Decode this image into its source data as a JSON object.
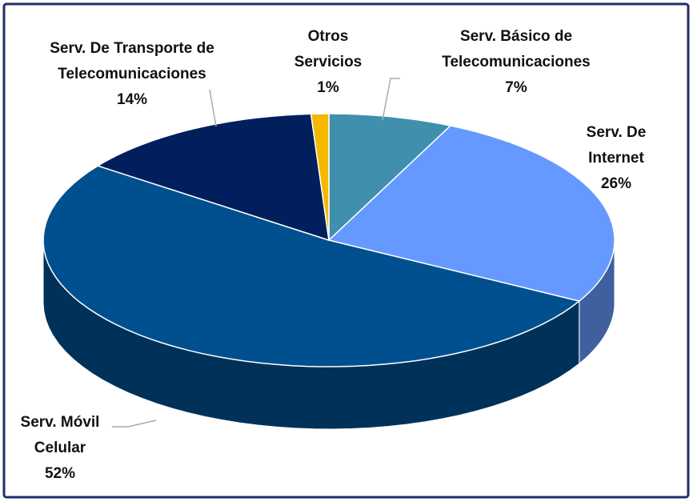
{
  "chart_data": {
    "type": "pie",
    "categories": [
      "Serv. Básico de Telecomunicaciones",
      "Serv. De Internet",
      "Serv. Móvil Celular",
      "Serv. De Transporte de Telecomunicaciones",
      "Otros Servicios"
    ],
    "values": [
      7,
      26,
      52,
      14,
      1
    ],
    "value_labels": [
      "7%",
      "26%",
      "52%",
      "14%",
      "1%"
    ],
    "colors": [
      "#3f8fad",
      "#6699ff",
      "#00508f",
      "#001f5c",
      "#f5b800"
    ]
  }
}
